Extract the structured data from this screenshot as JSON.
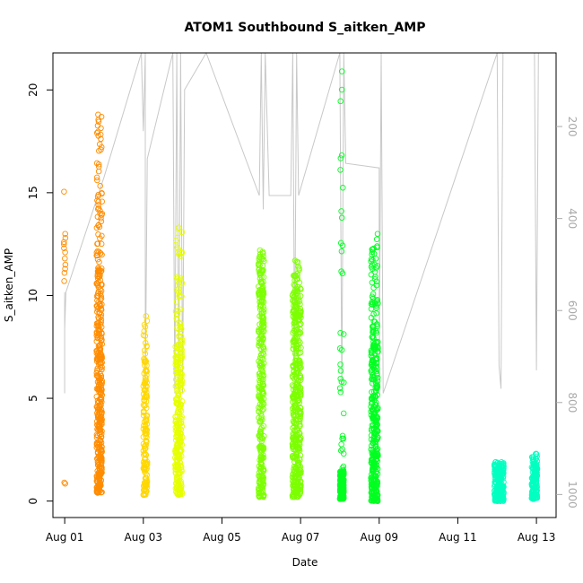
{
  "chart_data": {
    "type": "scatter",
    "title": "ATOM1 Southbound S_aitken_AMP",
    "xlabel": "Date",
    "ylabel": "S_aitken_AMP",
    "x_tick_labels": [
      "Aug 01",
      "Aug 03",
      "Aug 05",
      "Aug 07",
      "Aug 09",
      "Aug 11",
      "Aug 13"
    ],
    "x_tick_days": [
      1,
      3,
      5,
      7,
      9,
      11,
      13
    ],
    "xlim": [
      0.7,
      13.5
    ],
    "ylim": [
      -0.8,
      21.8
    ],
    "y_ticks": [
      0,
      5,
      10,
      15,
      20
    ],
    "y2_ticks": [
      200,
      400,
      600,
      800,
      1000
    ],
    "y2lim": [
      1050,
      40
    ],
    "y2_color": "#aaaaaa",
    "grid": false,
    "legend": "none",
    "series": [
      {
        "color": "#ff8c00",
        "clusters": [
          {
            "day": 1.0,
            "spread": 0.02,
            "points": [
              15.05,
              13.0,
              12.8,
              12.6,
              12.5,
              12.3,
              12.1,
              11.8,
              11.5,
              11.3,
              11.1,
              10.7,
              0.9,
              0.85
            ]
          },
          {
            "day": 1.88,
            "spread": 0.07,
            "min": 0.4,
            "dense_top": 10.5,
            "max": 18.8,
            "n": 420
          }
        ]
      },
      {
        "color": "#ffd700",
        "clusters": [
          {
            "day": 3.05,
            "spread": 0.05,
            "min": 0.3,
            "dense_top": 6.0,
            "max": 9.0,
            "n": 160
          }
        ]
      },
      {
        "color": "#e6ff00",
        "clusters": [
          {
            "day": 3.9,
            "spread": 0.09,
            "min": 0.3,
            "dense_top": 7.5,
            "max": 13.3,
            "n": 300
          }
        ]
      },
      {
        "color": "#7cff00",
        "clusters": [
          {
            "day": 6.0,
            "spread": 0.07,
            "min": 0.2,
            "dense_top": 10.0,
            "max": 12.2,
            "n": 300
          },
          {
            "day": 6.9,
            "spread": 0.11,
            "min": 0.2,
            "dense_top": 9.0,
            "max": 11.7,
            "n": 450
          }
        ]
      },
      {
        "color": "#00ff20",
        "clusters": [
          {
            "day": 8.05,
            "spread": 0.05,
            "min": 0.1,
            "dense_top": 1.5,
            "max": 20.9,
            "n": 200
          },
          {
            "day": 8.88,
            "spread": 0.09,
            "min": 0.0,
            "dense_top": 7.5,
            "max": 13.0,
            "n": 380
          }
        ]
      },
      {
        "color": "#00ffc0",
        "clusters": [
          {
            "day": 12.05,
            "spread": 0.12,
            "min": 0.0,
            "dense_top": 1.5,
            "max": 1.9,
            "n": 220
          },
          {
            "day": 12.95,
            "spread": 0.07,
            "min": 0.1,
            "dense_top": 1.6,
            "max": 2.3,
            "n": 150
          }
        ]
      }
    ],
    "overlay": {
      "color": "#c8c8c8",
      "points": [
        [
          1.0,
          780
        ],
        [
          1.0,
          560
        ],
        [
          1.0,
          640
        ],
        [
          1.03,
          560
        ],
        [
          2.0,
          310
        ],
        [
          2.95,
          40
        ],
        [
          3.0,
          210
        ],
        [
          3.05,
          40
        ],
        [
          3.05,
          780
        ],
        [
          3.1,
          270
        ],
        [
          3.75,
          40
        ],
        [
          3.8,
          780
        ],
        [
          3.85,
          40
        ],
        [
          3.9,
          780
        ],
        [
          3.95,
          40
        ],
        [
          4.0,
          780
        ],
        [
          4.05,
          120
        ],
        [
          4.6,
          40
        ],
        [
          5.95,
          350
        ],
        [
          6.0,
          40
        ],
        [
          6.05,
          380
        ],
        [
          6.1,
          40
        ],
        [
          6.2,
          350
        ],
        [
          6.75,
          350
        ],
        [
          6.8,
          40
        ],
        [
          6.85,
          700
        ],
        [
          6.9,
          40
        ],
        [
          6.95,
          350
        ],
        [
          8.0,
          40
        ],
        [
          8.05,
          780
        ],
        [
          8.1,
          40
        ],
        [
          8.15,
          280
        ],
        [
          9.0,
          290
        ],
        [
          9.0,
          760
        ],
        [
          9.05,
          40
        ],
        [
          9.1,
          780
        ],
        [
          12.0,
          40
        ],
        [
          12.05,
          720
        ],
        [
          12.1,
          770
        ],
        [
          12.15,
          40
        ],
        [
          12.95,
          40
        ],
        [
          13.0,
          730
        ],
        [
          13.05,
          40
        ]
      ]
    }
  }
}
